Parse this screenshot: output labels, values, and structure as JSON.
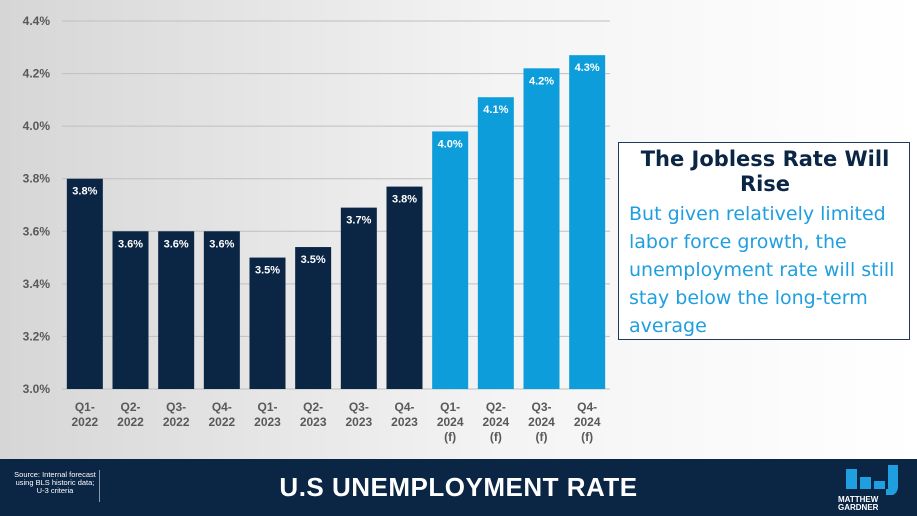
{
  "chart_data": {
    "type": "bar",
    "title": "",
    "xlabel": "",
    "ylabel": "",
    "categories": [
      [
        "Q1-",
        "2022"
      ],
      [
        "Q2-",
        "2022"
      ],
      [
        "Q3-",
        "2022"
      ],
      [
        "Q4-",
        "2022"
      ],
      [
        "Q1-",
        "2023"
      ],
      [
        "Q2-",
        "2023"
      ],
      [
        "Q3-",
        "2023"
      ],
      [
        "Q4-",
        "2023"
      ],
      [
        "Q1-",
        "2024",
        "(f)"
      ],
      [
        "Q2-",
        "2024",
        "(f)"
      ],
      [
        "Q3-",
        "2024",
        "(f)"
      ],
      [
        "Q4-",
        "2024",
        "(f)"
      ]
    ],
    "values": [
      3.8,
      3.6,
      3.6,
      3.6,
      3.5,
      3.54,
      3.69,
      3.77,
      3.98,
      4.11,
      4.22,
      4.27
    ],
    "data_labels": [
      "3.8%",
      "3.6%",
      "3.6%",
      "3.6%",
      "3.5%",
      "3.5%",
      "3.7%",
      "3.8%",
      "4.0%",
      "4.1%",
      "4.2%",
      "4.3%"
    ],
    "forecast": [
      false,
      false,
      false,
      false,
      false,
      false,
      false,
      false,
      true,
      true,
      true,
      true
    ],
    "ylim": [
      3.0,
      4.4
    ],
    "yticks": [
      3.0,
      3.2,
      3.4,
      3.6,
      3.8,
      4.0,
      4.2,
      4.4
    ],
    "ytick_labels": [
      "3.0%",
      "3.2%",
      "3.4%",
      "3.6%",
      "3.8%",
      "4.0%",
      "4.2%",
      "4.4%"
    ],
    "grid": true,
    "colors": {
      "actual": "#0b2545",
      "forecast": "#0d9ddb",
      "grid": "#bfbfbf",
      "axis_text": "#595959"
    }
  },
  "callout": {
    "title": "The Jobless Rate Will Rise",
    "body": "But given relatively limited labor force growth, the unemployment rate will still stay below the long-term average"
  },
  "footer": {
    "source": "Source: Internal forecast using BLS historic data; U-3 criteria",
    "title": "U.S UNEMPLOYMENT RATE",
    "logo_text": [
      "MATTHEW",
      "GARDNER"
    ],
    "logo_icon": "bar-chart-logo-icon"
  }
}
